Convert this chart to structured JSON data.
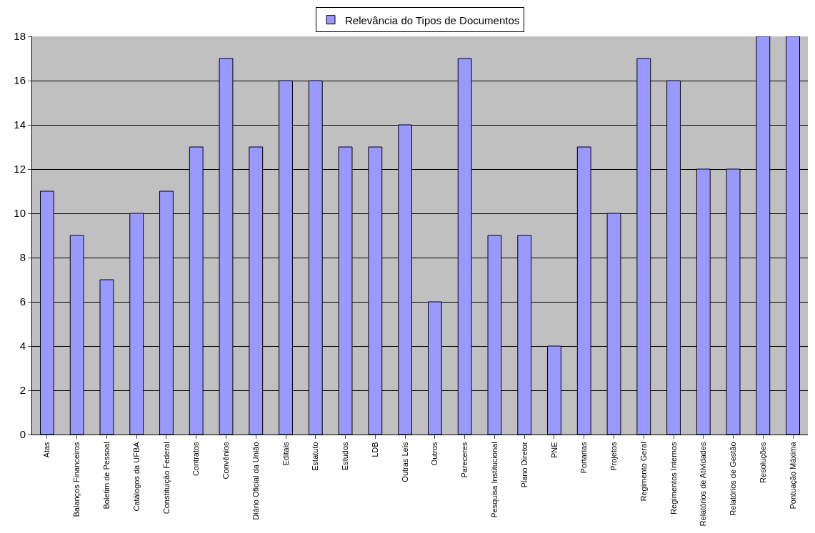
{
  "chart_data": {
    "type": "bar",
    "categories": [
      "Atas",
      "Balanços Financeiros",
      "Boletim de Pessoal",
      "Catálogos da UFBA",
      "Constituição Federal",
      "Contratos",
      "Convênios",
      "Diário Oficial da União",
      "Editais",
      "Estatuto",
      "Estudos",
      "LDB",
      "Outras Leis",
      "Outros",
      "Pareceres",
      "Pesquisa Institucional",
      "Plano Diretor",
      "PNE",
      "Portarias",
      "Projetos",
      "Regimento Geral",
      "Regimentos Internos",
      "Relatórios de Atividades",
      "Relatórios de Gestão",
      "Resoluções",
      "Pontuação Máxima"
    ],
    "series": [
      {
        "name": "Relevância do Tipos de Documentos",
        "color": "#9999ff",
        "values": [
          11,
          9,
          7,
          10,
          11,
          13,
          17,
          13,
          16,
          16,
          13,
          13,
          14,
          6,
          17,
          9,
          9,
          4,
          13,
          10,
          17,
          16,
          12,
          12,
          18,
          18
        ]
      }
    ],
    "ylim": [
      0,
      18
    ],
    "yticks": [
      0,
      2,
      4,
      6,
      8,
      10,
      12,
      14,
      16,
      18
    ],
    "grid": "y",
    "legend": "top"
  }
}
